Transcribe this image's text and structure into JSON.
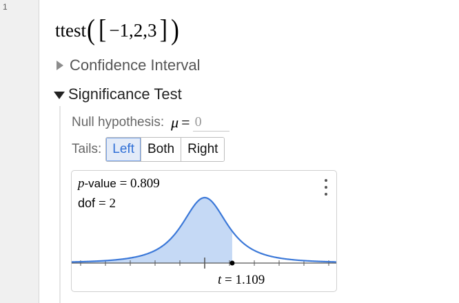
{
  "editor": {
    "line_number": "1"
  },
  "expression": {
    "function": "ttest",
    "arguments": "−1,2,3"
  },
  "sections": {
    "confidence_interval": "Confidence Interval",
    "significance_test": "Significance Test"
  },
  "null_hypothesis": {
    "label": "Null hypothesis:",
    "symbol": "μ",
    "value": "0"
  },
  "tails": {
    "label": "Tails:",
    "options": [
      "Left",
      "Both",
      "Right"
    ],
    "selected": "Left"
  },
  "plot": {
    "p_label": "p",
    "p_value_text": "-value",
    "p_value": "0.809",
    "dof_label": "dof",
    "dof": "2",
    "t_label": "t",
    "t_value": "1.109",
    "fill_color": "#c5d9f5",
    "curve_color": "#3b78d8"
  },
  "chart_data": {
    "type": "area",
    "distribution": "Student t",
    "degrees_of_freedom": 2,
    "test_statistic": 1.109,
    "shaded_region": "left of t",
    "p_value": 0.809
  }
}
